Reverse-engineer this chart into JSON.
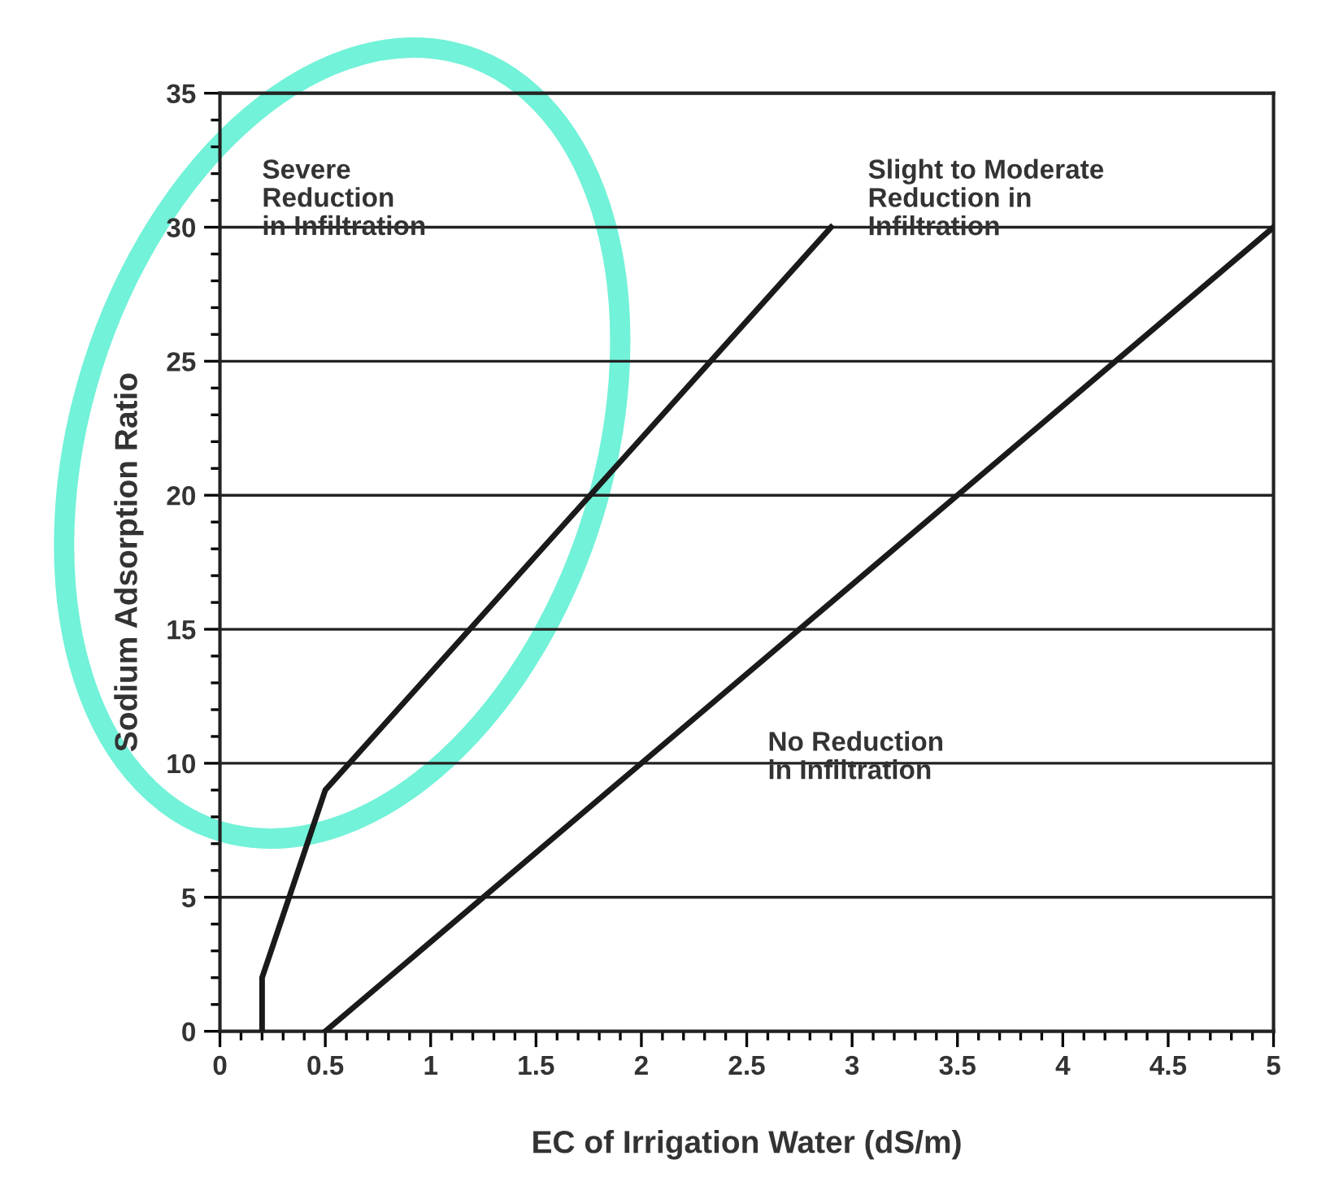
{
  "chart_data": {
    "type": "line",
    "xlabel": "EC of Irrigation Water (dS/m)",
    "ylabel": "Sodium Adsorption Ratio",
    "series": [
      {
        "color": "#1a1a1a",
        "x": [
          0.2,
          0.2,
          0.5,
          2.9
        ],
        "values": [
          0,
          2,
          9,
          30
        ]
      },
      {
        "color": "#1a1a1a",
        "x": [
          0.5,
          5
        ],
        "values": [
          0,
          30
        ]
      }
    ],
    "xlim": [
      0,
      5
    ],
    "xticks": [
      0,
      0.5,
      1,
      1.5,
      2,
      2.5,
      3,
      3.5,
      4,
      4.5,
      5
    ],
    "ylim": [
      0,
      35
    ],
    "yticks": [
      0,
      5,
      10,
      15,
      20,
      25,
      30,
      35
    ],
    "grid": "y",
    "marker": "none",
    "line_style": "solid",
    "annotations": [
      "Severe\nReduction\nin Infiltration",
      "Slight to Moderate\nReduction in\nInfiltration",
      "No Reduction\nin Infiltration"
    ]
  }
}
